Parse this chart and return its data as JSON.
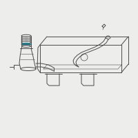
{
  "bg_color": "#ededeb",
  "line_color": "#4a4a4a",
  "accent_color": "#2a7a8a",
  "fig_size": [
    2.0,
    2.0
  ],
  "dpi": 100
}
